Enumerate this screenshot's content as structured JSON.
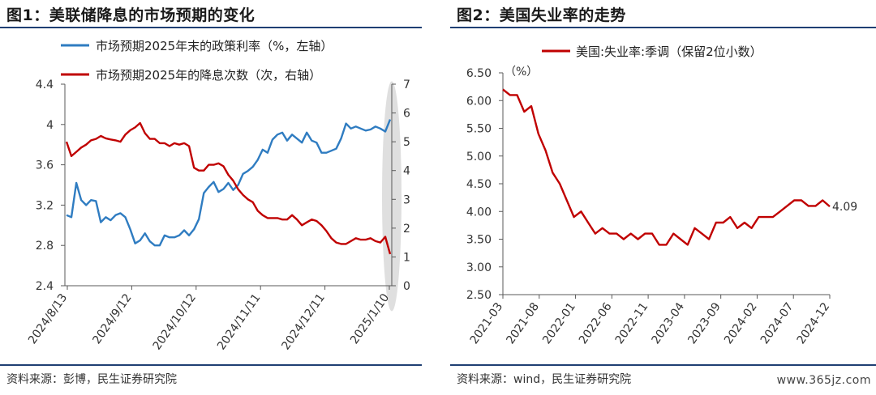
{
  "panel1": {
    "title": "图1：美联储降息的市场预期的变化",
    "source": "资料来源：彭博，民生证券研究院",
    "chart_data": {
      "type": "line",
      "series": [
        {
          "name": "市场预期2025年末的政策利率（%，左轴）",
          "axis": "left",
          "color": "#2f7cc1",
          "values": [
            3.1,
            3.08,
            3.42,
            3.25,
            3.2,
            3.25,
            3.24,
            3.03,
            3.08,
            3.05,
            3.1,
            3.12,
            3.08,
            2.96,
            2.82,
            2.85,
            2.92,
            2.84,
            2.8,
            2.8,
            2.9,
            2.88,
            2.88,
            2.9,
            2.95,
            2.9,
            2.96,
            3.06,
            3.32,
            3.38,
            3.43,
            3.33,
            3.36,
            3.42,
            3.35,
            3.4,
            3.51,
            3.54,
            3.58,
            3.65,
            3.75,
            3.72,
            3.85,
            3.9,
            3.92,
            3.84,
            3.9,
            3.86,
            3.82,
            3.92,
            3.84,
            3.82,
            3.72,
            3.72,
            3.74,
            3.76,
            3.86,
            4.01,
            3.96,
            3.98,
            3.96,
            3.94,
            3.95,
            3.98,
            3.96,
            3.93,
            4.05
          ]
        },
        {
          "name": "市场预期2025年的降息次数（次，右轴）",
          "axis": "right",
          "color": "#c00000",
          "values": [
            5.0,
            4.5,
            4.65,
            4.8,
            4.9,
            5.05,
            5.1,
            5.2,
            5.12,
            5.08,
            5.05,
            5.0,
            5.25,
            5.4,
            5.5,
            5.65,
            5.3,
            5.1,
            5.1,
            4.95,
            4.95,
            4.85,
            4.95,
            4.9,
            4.95,
            4.85,
            4.1,
            4.0,
            4.0,
            4.2,
            4.2,
            4.25,
            4.15,
            3.85,
            3.65,
            3.35,
            3.15,
            3.0,
            2.9,
            2.6,
            2.45,
            2.35,
            2.35,
            2.35,
            2.3,
            2.3,
            2.45,
            2.3,
            2.1,
            2.2,
            2.3,
            2.25,
            2.1,
            1.9,
            1.65,
            1.5,
            1.45,
            1.45,
            1.55,
            1.65,
            1.6,
            1.6,
            1.65,
            1.55,
            1.5,
            1.7,
            1.1
          ]
        }
      ],
      "x_tick_labels": [
        "2024/8/13",
        "2024/9/12",
        "2024/10/12",
        "2024/11/11",
        "2024/12/11",
        "2025/1/10"
      ],
      "y_left": {
        "min": 2.4,
        "max": 4.4,
        "ticks": [
          "2.4",
          "2.8",
          "3.2",
          "3.6",
          "4",
          "4.4"
        ]
      },
      "y_right": {
        "min": 0,
        "max": 7,
        "ticks": [
          "0",
          "1",
          "2",
          "3",
          "4",
          "5",
          "6",
          "7"
        ]
      },
      "grid": false,
      "legend_position": "top-left",
      "highlight_last": true
    }
  },
  "panel2": {
    "title": "图2：美国失业率的走势",
    "source": "资料来源：wind，民生证券研究院",
    "watermark": "www.365jz.com",
    "chart_data": {
      "type": "line",
      "unit_label": "（%）",
      "series": [
        {
          "name": "美国:失业率:季调（保留2位小数）",
          "color": "#c00000",
          "values": [
            6.2,
            6.1,
            6.1,
            5.8,
            5.9,
            5.4,
            5.1,
            4.7,
            4.5,
            4.2,
            3.9,
            4.0,
            3.8,
            3.6,
            3.7,
            3.6,
            3.6,
            3.5,
            3.6,
            3.5,
            3.6,
            3.6,
            3.4,
            3.4,
            3.6,
            3.5,
            3.4,
            3.7,
            3.6,
            3.5,
            3.8,
            3.8,
            3.9,
            3.7,
            3.8,
            3.7,
            3.9,
            3.9,
            3.9,
            4.0,
            4.1,
            4.2,
            4.2,
            4.1,
            4.1,
            4.2,
            4.09
          ]
        }
      ],
      "end_label": "4.09",
      "x_tick_labels": [
        "2021-03",
        "2021-08",
        "2022-01",
        "2022-06",
        "2022-11",
        "2023-04",
        "2023-09",
        "2024-02",
        "2024-07",
        "2024-12"
      ],
      "y_axis": {
        "min": 2.5,
        "max": 6.5,
        "ticks": [
          "2.50",
          "3.00",
          "3.50",
          "4.00",
          "4.50",
          "5.00",
          "5.50",
          "6.00",
          "6.50"
        ]
      },
      "grid": false,
      "legend_position": "top"
    }
  }
}
